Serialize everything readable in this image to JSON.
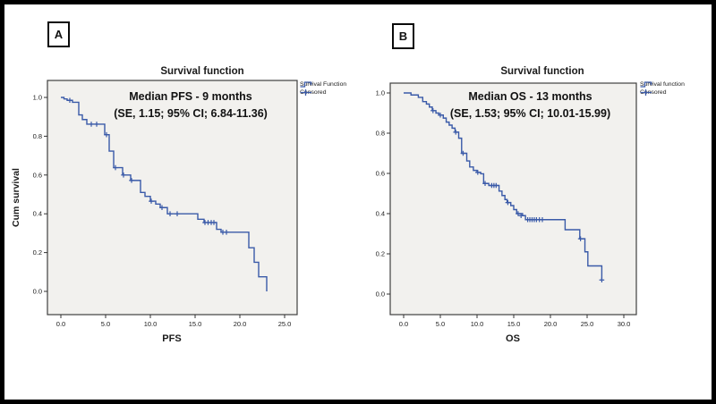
{
  "figure": {
    "frame_color": "#000000",
    "background_color": "#ffffff",
    "accent_blue": "#3a5aa8"
  },
  "panels": [
    {
      "label": "A",
      "title": "Survival function",
      "annotation": {
        "line1": "Median PFS - 9 months",
        "line2": "(SE, 1.15; 95% CI; 6.84-11.36)"
      },
      "legend": [
        {
          "label": "Survival Function",
          "icon": "step-line-icon"
        },
        {
          "label": "Censored",
          "icon": "plus-censor-icon"
        }
      ],
      "xlabel": "PFS",
      "ylabel": "Cum survival"
    },
    {
      "label": "B",
      "title": "Survival function",
      "annotation": {
        "line1": "Median OS - 13 months",
        "line2": "(SE, 1.53; 95% CI; 10.01-15.99)"
      },
      "legend": [
        {
          "label": "Survival function",
          "icon": "step-line-icon"
        },
        {
          "label": "Censored",
          "icon": "plus-censor-icon"
        }
      ],
      "xlabel": "OS",
      "ylabel": ""
    }
  ],
  "chart_data": [
    {
      "type": "line",
      "subtype": "kaplan-meier-step",
      "title": "Survival function",
      "xlabel": "PFS",
      "ylabel": "Cum survival",
      "annotation": [
        "Median PFS - 9 months",
        "(SE, 1.15; 95% CI; 6.84-11.36)"
      ],
      "median_months": 9,
      "se": 1.15,
      "ci_95": [
        6.84,
        11.36
      ],
      "xlim": [
        0,
        25
      ],
      "ylim": [
        0,
        1
      ],
      "xticks": [
        0,
        5,
        10,
        15,
        20,
        25
      ],
      "xtick_labels": [
        "0.0",
        "5.0",
        "10.0",
        "15.0",
        "20.0",
        "25.0"
      ],
      "yticks": [
        1.0,
        0.8,
        0.6,
        0.4,
        0.2,
        0.0
      ],
      "ytick_labels": [
        "1.0",
        "0.8",
        "0.6",
        "0.4",
        "0.2",
        "0.0"
      ],
      "legend_entries": [
        "Survival Function",
        "Censored"
      ],
      "line_color": "#3a5aa8",
      "plot_bg": "#f2f1ee",
      "steps": [
        [
          0,
          1.0
        ],
        [
          0.35,
          0.992
        ],
        [
          0.7,
          0.985
        ],
        [
          1.3,
          0.975
        ],
        [
          2.0,
          0.91
        ],
        [
          2.4,
          0.886
        ],
        [
          2.9,
          0.862
        ],
        [
          4.9,
          0.808
        ],
        [
          5.4,
          0.723
        ],
        [
          5.9,
          0.638
        ],
        [
          6.9,
          0.6
        ],
        [
          7.8,
          0.572
        ],
        [
          8.9,
          0.51
        ],
        [
          9.4,
          0.49
        ],
        [
          10.0,
          0.465
        ],
        [
          10.6,
          0.45
        ],
        [
          11.1,
          0.432
        ],
        [
          11.9,
          0.4
        ],
        [
          15.3,
          0.372
        ],
        [
          16.0,
          0.355
        ],
        [
          17.4,
          0.32
        ],
        [
          17.9,
          0.305
        ],
        [
          21.0,
          0.225
        ],
        [
          21.6,
          0.15
        ],
        [
          22.1,
          0.075
        ],
        [
          23.0,
          0.0
        ]
      ],
      "censored": [
        [
          1.0,
          0.985
        ],
        [
          3.4,
          0.862
        ],
        [
          4.0,
          0.862
        ],
        [
          5.1,
          0.808
        ],
        [
          6.1,
          0.638
        ],
        [
          7.0,
          0.6
        ],
        [
          7.9,
          0.572
        ],
        [
          10.1,
          0.465
        ],
        [
          11.3,
          0.432
        ],
        [
          12.2,
          0.4
        ],
        [
          13.0,
          0.4
        ],
        [
          16.1,
          0.355
        ],
        [
          16.45,
          0.355
        ],
        [
          16.8,
          0.355
        ],
        [
          17.1,
          0.355
        ],
        [
          18.1,
          0.305
        ],
        [
          18.5,
          0.305
        ]
      ]
    },
    {
      "type": "line",
      "subtype": "kaplan-meier-step",
      "title": "Survival function",
      "xlabel": "OS",
      "ylabel": "",
      "annotation": [
        "Median OS - 13 months",
        "(SE, 1.53; 95% CI; 10.01-15.99)"
      ],
      "median_months": 13,
      "se": 1.53,
      "ci_95": [
        10.01,
        15.99
      ],
      "xlim": [
        0,
        30
      ],
      "ylim": [
        0,
        1
      ],
      "xticks": [
        0,
        5,
        10,
        15,
        20,
        25,
        30
      ],
      "xtick_labels": [
        "0.0",
        "5.0",
        "10.0",
        "15.0",
        "20.0",
        "25.0",
        "30.0"
      ],
      "yticks": [
        1.0,
        0.8,
        0.6,
        0.4,
        0.2,
        0.0
      ],
      "ytick_labels": [
        "1.0",
        "0.8",
        "0.6",
        "0.4",
        "0.2",
        "0.0"
      ],
      "legend_entries": [
        "Survival function",
        "Censored"
      ],
      "line_color": "#3a5aa8",
      "plot_bg": "#f2f1ee",
      "steps": [
        [
          0,
          1.0
        ],
        [
          1.0,
          0.99
        ],
        [
          2.0,
          0.978
        ],
        [
          2.6,
          0.957
        ],
        [
          3.1,
          0.945
        ],
        [
          3.5,
          0.93
        ],
        [
          3.9,
          0.912
        ],
        [
          4.4,
          0.9
        ],
        [
          4.8,
          0.89
        ],
        [
          5.4,
          0.875
        ],
        [
          5.8,
          0.855
        ],
        [
          6.2,
          0.84
        ],
        [
          6.6,
          0.825
        ],
        [
          7.0,
          0.805
        ],
        [
          7.5,
          0.775
        ],
        [
          7.9,
          0.7
        ],
        [
          8.6,
          0.662
        ],
        [
          9.0,
          0.632
        ],
        [
          9.5,
          0.615
        ],
        [
          10.0,
          0.605
        ],
        [
          10.5,
          0.598
        ],
        [
          10.9,
          0.55
        ],
        [
          11.6,
          0.54
        ],
        [
          13.0,
          0.512
        ],
        [
          13.4,
          0.49
        ],
        [
          13.8,
          0.47
        ],
        [
          14.1,
          0.455
        ],
        [
          14.6,
          0.44
        ],
        [
          15.0,
          0.42
        ],
        [
          15.4,
          0.4
        ],
        [
          16.2,
          0.39
        ],
        [
          16.6,
          0.37
        ],
        [
          22.0,
          0.32
        ],
        [
          24.0,
          0.275
        ],
        [
          24.7,
          0.21
        ],
        [
          25.1,
          0.14
        ],
        [
          27.0,
          0.07
        ]
      ],
      "censored": [
        [
          4.0,
          0.912
        ],
        [
          5.0,
          0.89
        ],
        [
          7.1,
          0.805
        ],
        [
          8.1,
          0.7
        ],
        [
          10.1,
          0.605
        ],
        [
          11.1,
          0.55
        ],
        [
          12.0,
          0.54
        ],
        [
          12.3,
          0.54
        ],
        [
          12.6,
          0.54
        ],
        [
          14.2,
          0.455
        ],
        [
          15.6,
          0.4
        ],
        [
          16.0,
          0.39
        ],
        [
          16.9,
          0.37
        ],
        [
          17.2,
          0.37
        ],
        [
          17.5,
          0.37
        ],
        [
          17.8,
          0.37
        ],
        [
          18.1,
          0.37
        ],
        [
          18.5,
          0.37
        ],
        [
          18.9,
          0.37
        ],
        [
          24.1,
          0.275
        ],
        [
          27.0,
          0.07
        ]
      ]
    }
  ]
}
